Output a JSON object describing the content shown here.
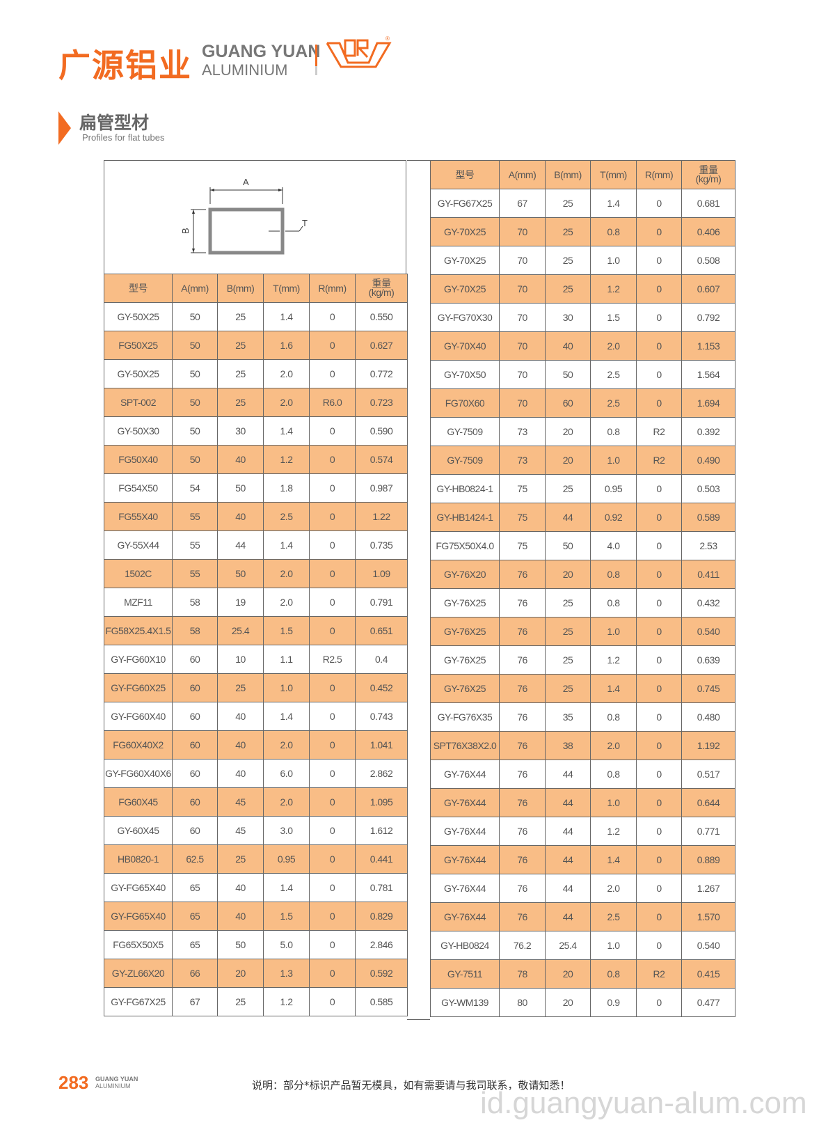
{
  "brand": {
    "cn": "广源铝业",
    "en_line1": "GUANG YUAN",
    "en_line2": "ALUMINIUM",
    "registered": "®",
    "accent": "#f26b21"
  },
  "section": {
    "title": "扁管型材",
    "subtitle": "Profiles for flat tubes"
  },
  "diagram": {
    "labels": {
      "a": "A",
      "b": "B",
      "t": "T"
    }
  },
  "table": {
    "header_color": "#f9bd86",
    "columns": [
      "型号",
      "A(mm)",
      "B(mm)",
      "T(mm)",
      "R(mm)",
      "重量\n(kg/m)"
    ],
    "left_rows": [
      [
        "GY-50X25",
        "50",
        "25",
        "1.4",
        "0",
        "0.550"
      ],
      [
        "FG50X25",
        "50",
        "25",
        "1.6",
        "0",
        "0.627"
      ],
      [
        "GY-50X25",
        "50",
        "25",
        "2.0",
        "0",
        "0.772"
      ],
      [
        "SPT-002",
        "50",
        "25",
        "2.0",
        "R6.0",
        "0.723"
      ],
      [
        "GY-50X30",
        "50",
        "30",
        "1.4",
        "0",
        "0.590"
      ],
      [
        "FG50X40",
        "50",
        "40",
        "1.2",
        "0",
        "0.574"
      ],
      [
        "FG54X50",
        "54",
        "50",
        "1.8",
        "0",
        "0.987"
      ],
      [
        "FG55X40",
        "55",
        "40",
        "2.5",
        "0",
        "1.22"
      ],
      [
        "GY-55X44",
        "55",
        "44",
        "1.4",
        "0",
        "0.735"
      ],
      [
        "1502C",
        "55",
        "50",
        "2.0",
        "0",
        "1.09"
      ],
      [
        "MZF11",
        "58",
        "19",
        "2.0",
        "0",
        "0.791"
      ],
      [
        "FG58X25.4X1.5",
        "58",
        "25.4",
        "1.5",
        "0",
        "0.651"
      ],
      [
        "GY-FG60X10",
        "60",
        "10",
        "1.1",
        "R2.5",
        "0.4"
      ],
      [
        "GY-FG60X25",
        "60",
        "25",
        "1.0",
        "0",
        "0.452"
      ],
      [
        "GY-FG60X40",
        "60",
        "40",
        "1.4",
        "0",
        "0.743"
      ],
      [
        "FG60X40X2",
        "60",
        "40",
        "2.0",
        "0",
        "1.041"
      ],
      [
        "GY-FG60X40X6",
        "60",
        "40",
        "6.0",
        "0",
        "2.862"
      ],
      [
        "FG60X45",
        "60",
        "45",
        "2.0",
        "0",
        "1.095"
      ],
      [
        "GY-60X45",
        "60",
        "45",
        "3.0",
        "0",
        "1.612"
      ],
      [
        "HB0820-1",
        "62.5",
        "25",
        "0.95",
        "0",
        "0.441"
      ],
      [
        "GY-FG65X40",
        "65",
        "40",
        "1.4",
        "0",
        "0.781"
      ],
      [
        "GY-FG65X40",
        "65",
        "40",
        "1.5",
        "0",
        "0.829"
      ],
      [
        "FG65X50X5",
        "65",
        "50",
        "5.0",
        "0",
        "2.846"
      ],
      [
        "GY-ZL66X20",
        "66",
        "20",
        "1.3",
        "0",
        "0.592"
      ],
      [
        "GY-FG67X25",
        "67",
        "25",
        "1.2",
        "0",
        "0.585"
      ]
    ],
    "right_rows": [
      [
        "GY-FG67X25",
        "67",
        "25",
        "1.4",
        "0",
        "0.681"
      ],
      [
        "GY-70X25",
        "70",
        "25",
        "0.8",
        "0",
        "0.406"
      ],
      [
        "GY-70X25",
        "70",
        "25",
        "1.0",
        "0",
        "0.508"
      ],
      [
        "GY-70X25",
        "70",
        "25",
        "1.2",
        "0",
        "0.607"
      ],
      [
        "GY-FG70X30",
        "70",
        "30",
        "1.5",
        "0",
        "0.792"
      ],
      [
        "GY-70X40",
        "70",
        "40",
        "2.0",
        "0",
        "1.153"
      ],
      [
        "GY-70X50",
        "70",
        "50",
        "2.5",
        "0",
        "1.564"
      ],
      [
        "FG70X60",
        "70",
        "60",
        "2.5",
        "0",
        "1.694"
      ],
      [
        "GY-7509",
        "73",
        "20",
        "0.8",
        "R2",
        "0.392"
      ],
      [
        "GY-7509",
        "73",
        "20",
        "1.0",
        "R2",
        "0.490"
      ],
      [
        "GY-HB0824-1",
        "75",
        "25",
        "0.95",
        "0",
        "0.503"
      ],
      [
        "GY-HB1424-1",
        "75",
        "44",
        "0.92",
        "0",
        "0.589"
      ],
      [
        "FG75X50X4.0",
        "75",
        "50",
        "4.0",
        "0",
        "2.53"
      ],
      [
        "GY-76X20",
        "76",
        "20",
        "0.8",
        "0",
        "0.411"
      ],
      [
        "GY-76X25",
        "76",
        "25",
        "0.8",
        "0",
        "0.432"
      ],
      [
        "GY-76X25",
        "76",
        "25",
        "1.0",
        "0",
        "0.540"
      ],
      [
        "GY-76X25",
        "76",
        "25",
        "1.2",
        "0",
        "0.639"
      ],
      [
        "GY-76X25",
        "76",
        "25",
        "1.4",
        "0",
        "0.745"
      ],
      [
        "GY-FG76X35",
        "76",
        "35",
        "0.8",
        "0",
        "0.480"
      ],
      [
        "SPT76X38X2.0",
        "76",
        "38",
        "2.0",
        "0",
        "1.192"
      ],
      [
        "GY-76X44",
        "76",
        "44",
        "0.8",
        "0",
        "0.517"
      ],
      [
        "GY-76X44",
        "76",
        "44",
        "1.0",
        "0",
        "0.644"
      ],
      [
        "GY-76X44",
        "76",
        "44",
        "1.2",
        "0",
        "0.771"
      ],
      [
        "GY-76X44",
        "76",
        "44",
        "1.4",
        "0",
        "0.889"
      ],
      [
        "GY-76X44",
        "76",
        "44",
        "2.0",
        "0",
        "1.267"
      ],
      [
        "GY-76X44",
        "76",
        "44",
        "2.5",
        "0",
        "1.570"
      ],
      [
        "GY-HB0824",
        "76.2",
        "25.4",
        "1.0",
        "0",
        "0.540"
      ],
      [
        "GY-7511",
        "78",
        "20",
        "0.8",
        "R2",
        "0.415"
      ],
      [
        "GY-WM139",
        "80",
        "20",
        "0.9",
        "0",
        "0.477"
      ]
    ]
  },
  "footer": {
    "page_number": "283",
    "brand_line1": "GUANG YUAN",
    "brand_line2": "ALUMINIUM",
    "note": "说明：部分*标识产品暂无模具，如有需要请与我司联系，敬请知悉！"
  },
  "watermark": "id.guangyuan-alum.com"
}
